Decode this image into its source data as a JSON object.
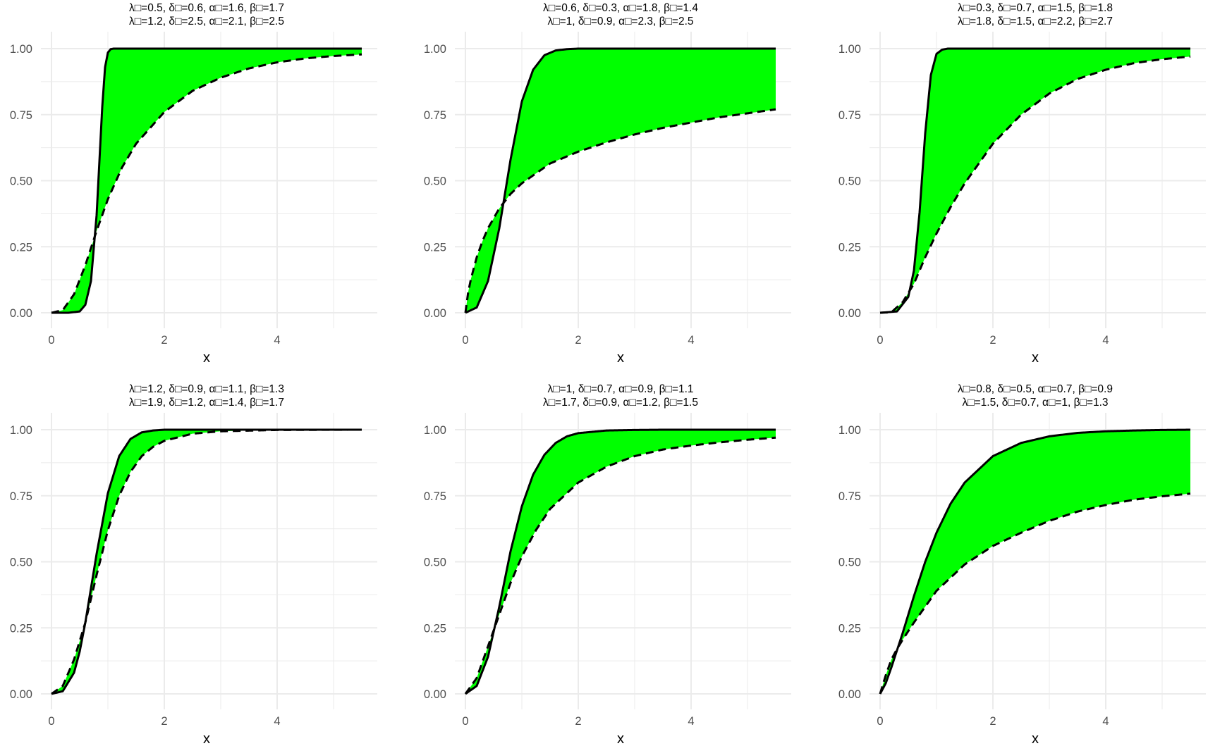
{
  "figure": {
    "fill_color": "#00ff00",
    "line_color": "#000000",
    "grid_color": "#ebebeb"
  },
  "chart_data": [
    {
      "type": "area",
      "title_line1": "λ□=0.5, δ□=0.6, α□=1.6, β□=1.7",
      "title_line2": "λ□=1.2, δ□=2.5, α□=2.1, β□=2.5",
      "xlabel": "x",
      "ylabel": "",
      "xlim": [
        0,
        5.5
      ],
      "ylim": [
        0,
        1
      ],
      "x_ticks": [
        "0",
        "2",
        "4"
      ],
      "y_ticks": [
        "0.00",
        "0.25",
        "0.50",
        "0.75",
        "1.00"
      ],
      "series": [
        {
          "name": "solid",
          "style": "solid",
          "x": [
            0,
            0.3,
            0.5,
            0.6,
            0.7,
            0.8,
            0.9,
            0.95,
            1.0,
            1.05,
            1.1,
            1.5,
            5.5
          ],
          "y": [
            0,
            0.0,
            0.005,
            0.03,
            0.12,
            0.37,
            0.78,
            0.93,
            0.985,
            0.998,
            1.0,
            1.0,
            1.0
          ]
        },
        {
          "name": "dashed",
          "style": "dashed",
          "x": [
            0,
            0.2,
            0.4,
            0.6,
            0.8,
            1.0,
            1.25,
            1.5,
            2.0,
            2.5,
            3.0,
            3.5,
            4.0,
            4.5,
            5.0,
            5.5
          ],
          "y": [
            0,
            0.01,
            0.07,
            0.18,
            0.31,
            0.43,
            0.55,
            0.64,
            0.76,
            0.84,
            0.89,
            0.925,
            0.948,
            0.963,
            0.972,
            0.978
          ]
        }
      ]
    },
    {
      "type": "area",
      "title_line1": "λ□=0.6, δ□=0.3, α□=1.8, β□=1.4",
      "title_line2": "λ□=1, δ□=0.9, α□=2.3, β□=2.5",
      "xlabel": "x",
      "ylabel": "",
      "xlim": [
        0,
        5.5
      ],
      "ylim": [
        0,
        1
      ],
      "x_ticks": [
        "0",
        "2",
        "4"
      ],
      "y_ticks": [
        "0.00",
        "0.25",
        "0.50",
        "0.75",
        "1.00"
      ],
      "series": [
        {
          "name": "solid",
          "style": "solid",
          "x": [
            0,
            0.2,
            0.4,
            0.6,
            0.8,
            1.0,
            1.2,
            1.4,
            1.6,
            1.8,
            2.0,
            2.5,
            5.5
          ],
          "y": [
            0,
            0.02,
            0.12,
            0.32,
            0.58,
            0.8,
            0.92,
            0.975,
            0.993,
            0.998,
            1.0,
            1.0,
            1.0
          ]
        },
        {
          "name": "dashed",
          "style": "dashed",
          "x": [
            0,
            0.05,
            0.1,
            0.2,
            0.3,
            0.4,
            0.6,
            0.8,
            1.0,
            1.5,
            2.0,
            2.5,
            3.0,
            3.5,
            4.0,
            4.5,
            5.0,
            5.5
          ],
          "y": [
            0,
            0.08,
            0.13,
            0.21,
            0.27,
            0.32,
            0.395,
            0.45,
            0.49,
            0.565,
            0.61,
            0.645,
            0.675,
            0.7,
            0.72,
            0.74,
            0.755,
            0.77
          ]
        }
      ]
    },
    {
      "type": "area",
      "title_line1": "λ□=0.3, δ□=0.7, α□=1.5, β□=1.8",
      "title_line2": "λ□=1.8, δ□=1.5, α□=2.2, β□=2.7",
      "xlabel": "x",
      "ylabel": "",
      "xlim": [
        0,
        5.5
      ],
      "ylim": [
        0,
        1
      ],
      "x_ticks": [
        "0",
        "2",
        "4"
      ],
      "y_ticks": [
        "0.00",
        "0.25",
        "0.50",
        "0.75",
        "1.00"
      ],
      "series": [
        {
          "name": "solid",
          "style": "solid",
          "x": [
            0,
            0.3,
            0.5,
            0.6,
            0.7,
            0.8,
            0.9,
            1.0,
            1.1,
            1.2,
            1.5,
            5.5
          ],
          "y": [
            0,
            0.005,
            0.06,
            0.16,
            0.38,
            0.68,
            0.9,
            0.98,
            0.996,
            1.0,
            1.0,
            1.0
          ]
        },
        {
          "name": "dashed",
          "style": "dashed",
          "x": [
            0,
            0.2,
            0.4,
            0.6,
            0.8,
            1.0,
            1.25,
            1.5,
            2.0,
            2.5,
            3.0,
            3.5,
            4.0,
            4.5,
            5.0,
            5.5
          ],
          "y": [
            0,
            0.002,
            0.04,
            0.11,
            0.21,
            0.3,
            0.4,
            0.49,
            0.64,
            0.75,
            0.83,
            0.885,
            0.92,
            0.945,
            0.96,
            0.97
          ]
        }
      ]
    },
    {
      "type": "area",
      "title_line1": "λ□=1.2, δ□=0.9, α□=1.1, β□=1.3",
      "title_line2": "λ□=1.9, δ□=1.2, α□=1.4, β□=1.7",
      "xlabel": "x",
      "ylabel": "",
      "xlim": [
        0,
        5.5
      ],
      "ylim": [
        0,
        1
      ],
      "x_ticks": [
        "0",
        "2",
        "4"
      ],
      "y_ticks": [
        "0.00",
        "0.25",
        "0.50",
        "0.75",
        "1.00"
      ],
      "series": [
        {
          "name": "solid",
          "style": "solid",
          "x": [
            0,
            0.2,
            0.4,
            0.5,
            0.6,
            0.8,
            1.0,
            1.2,
            1.4,
            1.6,
            1.8,
            2.0,
            2.5,
            5.5
          ],
          "y": [
            0,
            0.01,
            0.08,
            0.16,
            0.27,
            0.53,
            0.76,
            0.9,
            0.965,
            0.99,
            0.997,
            1.0,
            1.0,
            1.0
          ]
        },
        {
          "name": "dashed",
          "style": "dashed",
          "x": [
            0,
            0.2,
            0.4,
            0.5,
            0.6,
            0.8,
            1.0,
            1.2,
            1.4,
            1.6,
            1.8,
            2.0,
            2.5,
            3.0,
            4.0,
            5.5
          ],
          "y": [
            0,
            0.03,
            0.13,
            0.2,
            0.27,
            0.45,
            0.62,
            0.75,
            0.84,
            0.9,
            0.935,
            0.958,
            0.985,
            0.994,
            0.999,
            1.0
          ]
        }
      ]
    },
    {
      "type": "area",
      "title_line1": "λ□=1, δ□=0.7, α□=0.9, β□=1.1",
      "title_line2": "λ□=1.7, δ□=0.9, α□=1.2, β□=1.5",
      "xlabel": "x",
      "ylabel": "",
      "xlim": [
        0,
        5.5
      ],
      "ylim": [
        0,
        1
      ],
      "x_ticks": [
        "0",
        "2",
        "4"
      ],
      "y_ticks": [
        "0.00",
        "0.25",
        "0.50",
        "0.75",
        "1.00"
      ],
      "series": [
        {
          "name": "solid",
          "style": "solid",
          "x": [
            0,
            0.2,
            0.4,
            0.6,
            0.8,
            1.0,
            1.2,
            1.4,
            1.6,
            1.8,
            2.0,
            2.5,
            3.0,
            3.5,
            4.0,
            5.5
          ],
          "y": [
            0,
            0.03,
            0.14,
            0.33,
            0.54,
            0.71,
            0.83,
            0.905,
            0.95,
            0.975,
            0.987,
            0.997,
            0.999,
            1.0,
            1.0,
            1.0
          ]
        },
        {
          "name": "dashed",
          "style": "dashed",
          "x": [
            0,
            0.2,
            0.4,
            0.6,
            0.8,
            1.0,
            1.25,
            1.5,
            2.0,
            2.5,
            3.0,
            3.5,
            4.0,
            4.5,
            5.0,
            5.5
          ],
          "y": [
            0,
            0.06,
            0.18,
            0.3,
            0.42,
            0.52,
            0.62,
            0.7,
            0.8,
            0.86,
            0.9,
            0.925,
            0.94,
            0.952,
            0.962,
            0.97
          ]
        }
      ]
    },
    {
      "type": "area",
      "title_line1": "λ□=0.8, δ□=0.5, α□=0.7, β□=0.9",
      "title_line2": "λ□=1.5, δ□=0.7, α□=1, β□=1.3",
      "xlabel": "x",
      "ylabel": "",
      "xlim": [
        0,
        5.5
      ],
      "ylim": [
        0,
        1
      ],
      "x_ticks": [
        "0",
        "2",
        "4"
      ],
      "y_ticks": [
        "0.00",
        "0.25",
        "0.50",
        "0.75",
        "1.00"
      ],
      "series": [
        {
          "name": "solid",
          "style": "solid",
          "x": [
            0,
            0.1,
            0.2,
            0.3,
            0.4,
            0.6,
            0.8,
            1.0,
            1.25,
            1.5,
            2.0,
            2.5,
            3.0,
            3.5,
            4.0,
            4.5,
            5.0,
            5.5
          ],
          "y": [
            0,
            0.04,
            0.1,
            0.165,
            0.23,
            0.37,
            0.5,
            0.61,
            0.72,
            0.8,
            0.9,
            0.95,
            0.975,
            0.988,
            0.994,
            0.997,
            0.999,
            1.0
          ]
        },
        {
          "name": "dashed",
          "style": "dashed",
          "x": [
            0,
            0.1,
            0.2,
            0.3,
            0.4,
            0.6,
            0.8,
            1.0,
            1.5,
            2.0,
            2.5,
            3.0,
            3.5,
            4.0,
            4.5,
            5.0,
            5.5
          ],
          "y": [
            0,
            0.07,
            0.13,
            0.17,
            0.205,
            0.27,
            0.33,
            0.39,
            0.49,
            0.56,
            0.61,
            0.655,
            0.69,
            0.715,
            0.735,
            0.748,
            0.758
          ]
        }
      ]
    }
  ]
}
